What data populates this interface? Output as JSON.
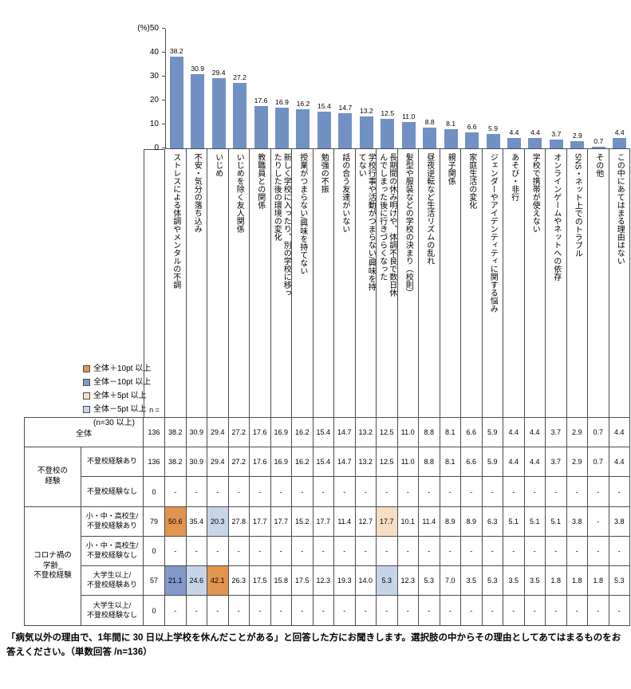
{
  "chart_data": {
    "type": "bar",
    "title": "",
    "unit_label": "(%)",
    "ylim": [
      0,
      50
    ],
    "yticks": [
      0,
      10,
      20,
      30,
      40,
      50
    ],
    "bar_color": "#7191C5",
    "categories": [
      "ストレスによる体調やメンタルの不調",
      "不安・気分の落ち込み",
      "いじめ",
      "いじめを除く友人関係",
      "教職員との関係",
      "新しく学校に入ったり、別の学校に移っ\nたりした後の環境の変化",
      "授業がつまらない/興味を持てない",
      "勉強の不振",
      "話の合う友達がいない",
      "学校行事や活動がつまらない/興味を持\nてない",
      "長期間の休み明けや、体調不良で数日休\nんでしまった後に行きづらくなった",
      "髪型や服装などの学校の決まり（校則）",
      "昼夜逆転など生活リズムの乱れ",
      "親子関係",
      "家庭生活の変化",
      "ジェンダーやアイデンティティに関する悩み",
      "あそび・非行",
      "学校で携帯が使えない",
      "オンラインゲームやネットへの依存",
      "SNS・ネット上でのトラブル",
      "その他",
      "この中にあてはまる理由はない"
    ],
    "values": [
      38.2,
      30.9,
      29.4,
      27.2,
      17.6,
      16.9,
      16.2,
      15.4,
      14.7,
      13.2,
      12.5,
      11.0,
      8.8,
      8.1,
      6.6,
      5.9,
      4.4,
      4.4,
      3.7,
      2.9,
      0.7,
      4.4
    ]
  },
  "legend": {
    "items": [
      {
        "key": "p10",
        "label": "全体＋10pt 以上",
        "color": "#E2954F"
      },
      {
        "key": "m10",
        "label": "全体－10pt 以上",
        "color": "#8398CB"
      },
      {
        "key": "p5",
        "label": "全体＋5pt 以上",
        "color": "#F6DEC5"
      },
      {
        "key": "m5",
        "label": "全体－5pt 以上",
        "color": "#C7D5EA"
      }
    ],
    "note": "(n=30 以上)"
  },
  "table": {
    "n_header": "n =",
    "rows": [
      {
        "group": "",
        "label": "全体",
        "n": "136",
        "values": [
          "38.2",
          "30.9",
          "29.4",
          "27.2",
          "17.6",
          "16.9",
          "16.2",
          "15.4",
          "14.7",
          "13.2",
          "12.5",
          "11.0",
          "8.8",
          "8.1",
          "6.6",
          "5.9",
          "4.4",
          "4.4",
          "3.7",
          "2.9",
          "0.7",
          "4.4"
        ],
        "highlights": {}
      },
      {
        "group": "不登校の\n経験",
        "label": "不登校経験あり",
        "n": "136",
        "values": [
          "38.2",
          "30.9",
          "29.4",
          "27.2",
          "17.6",
          "16.9",
          "16.2",
          "15.4",
          "14.7",
          "13.2",
          "12.5",
          "11.0",
          "8.8",
          "8.1",
          "6.6",
          "5.9",
          "4.4",
          "4.4",
          "3.7",
          "2.9",
          "0.7",
          "4.4"
        ],
        "highlights": {}
      },
      {
        "group": "不登校の\n経験",
        "label": "不登校経験なし",
        "n": "0",
        "values": [
          "-",
          "-",
          "-",
          "-",
          "-",
          "-",
          "-",
          "-",
          "-",
          "-",
          "-",
          "-",
          "-",
          "-",
          "-",
          "-",
          "-",
          "-",
          "-",
          "-",
          "-",
          "-"
        ],
        "highlights": {}
      },
      {
        "group": "コロナ禍の\n学齢_\n不登校経験",
        "label": "小・中・高校生/\n不登校経験あり",
        "n": "79",
        "values": [
          "50.6",
          "35.4",
          "20.3",
          "27.8",
          "17.7",
          "17.7",
          "15.2",
          "17.7",
          "11.4",
          "12.7",
          "17.7",
          "10.1",
          "11.4",
          "8.9",
          "8.9",
          "6.3",
          "5.1",
          "5.1",
          "5.1",
          "3.8",
          "-",
          "3.8"
        ],
        "highlights": {
          "0": "p10",
          "2": "m5",
          "10": "p5"
        }
      },
      {
        "group": "コロナ禍の\n学齢_\n不登校経験",
        "label": "小・中・高校生/\n不登校経験なし",
        "n": "0",
        "values": [
          "-",
          "-",
          "-",
          "-",
          "-",
          "-",
          "-",
          "-",
          "-",
          "-",
          "-",
          "-",
          "-",
          "-",
          "-",
          "-",
          "-",
          "-",
          "-",
          "-",
          "-",
          "-"
        ],
        "highlights": {}
      },
      {
        "group": "コロナ禍の\n学齢_\n不登校経験",
        "label": "大学生以上/\n不登校経験あり",
        "n": "57",
        "values": [
          "21.1",
          "24.6",
          "42.1",
          "26.3",
          "17.5",
          "15.8",
          "17.5",
          "12.3",
          "19.3",
          "14.0",
          "5.3",
          "12.3",
          "5.3",
          "7.0",
          "3.5",
          "5.3",
          "3.5",
          "3.5",
          "1.8",
          "1.8",
          "1.8",
          "5.3"
        ],
        "highlights": {
          "0": "m10",
          "1": "m5",
          "2": "p10",
          "10": "m5"
        }
      },
      {
        "group": "コロナ禍の\n学齢_\n不登校経験",
        "label": "大学生以上/\n不登校経験なし",
        "n": "0",
        "values": [
          "-",
          "-",
          "-",
          "-",
          "-",
          "-",
          "-",
          "-",
          "-",
          "-",
          "-",
          "-",
          "-",
          "-",
          "-",
          "-",
          "-",
          "-",
          "-",
          "-",
          "-",
          "-"
        ],
        "highlights": {}
      }
    ]
  },
  "footnote": "「病気以外の理由で、1年間に 30 日以上学校を休んだことがある」と回答した方にお聞きします。選択肢の中からその理由としてあてはまるものをお答えください。（単数回答 /n=136）"
}
